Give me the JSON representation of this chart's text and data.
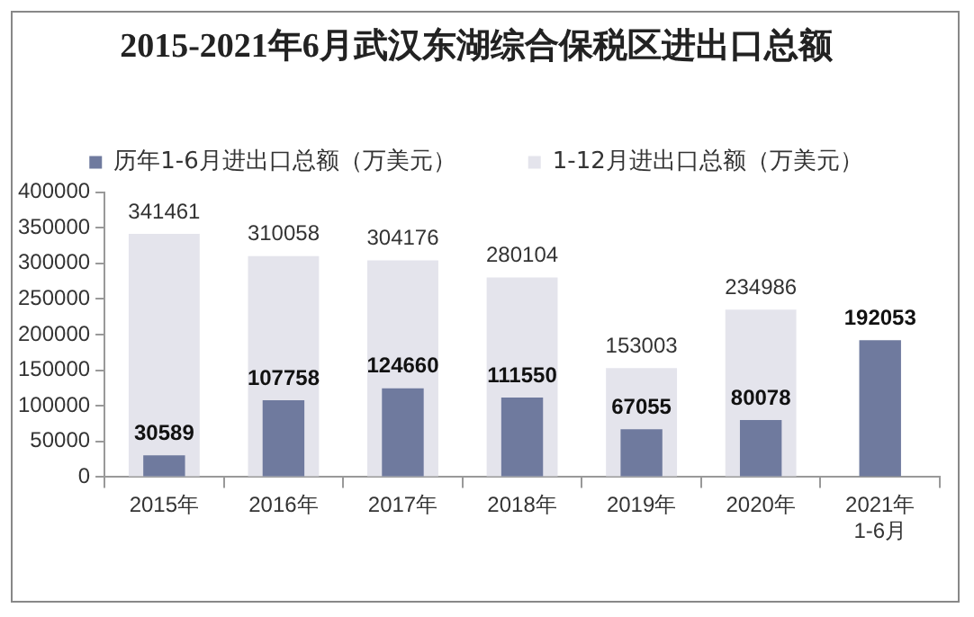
{
  "chart_data": {
    "type": "bar",
    "title": "2015-2021年6月武汉东湖综合保税区进出口总额",
    "categories": [
      "2015年",
      "2016年",
      "2017年",
      "2018年",
      "2019年",
      "2020年",
      "2021年\n1-6月"
    ],
    "series": [
      {
        "name": "1-12月进出口总额（万美元）",
        "color": "#e4e4ec",
        "values": [
          341461,
          310058,
          304176,
          280104,
          153003,
          234986,
          null
        ]
      },
      {
        "name": "历年1-6月进出口总额（万美元）",
        "color": "#6f7a9e",
        "values": [
          30589,
          107758,
          124660,
          111550,
          67055,
          80078,
          192053
        ]
      }
    ],
    "ylim": [
      0,
      400000
    ],
    "yticks": [
      0,
      50000,
      100000,
      150000,
      200000,
      250000,
      300000,
      350000,
      400000
    ],
    "grid": false,
    "legend": "top",
    "data_labels": true
  }
}
